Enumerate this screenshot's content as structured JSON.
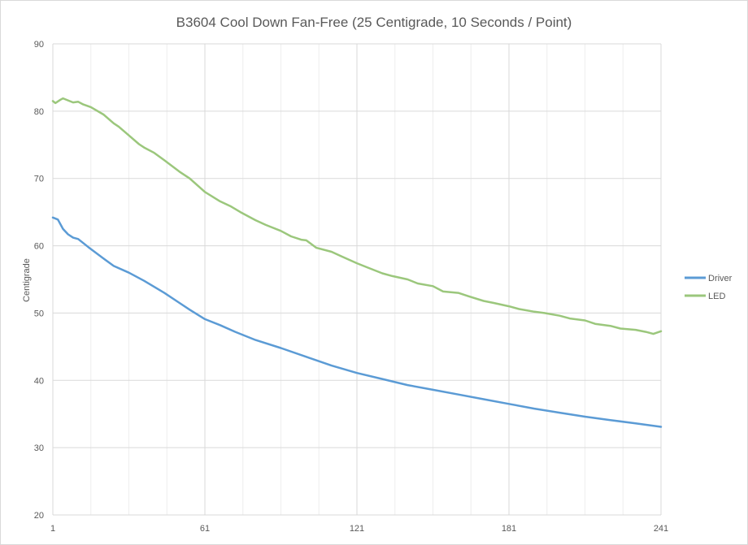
{
  "chart_data": {
    "type": "line",
    "title": "B3604 Cool Down Fan-Free (25 Centigrade, 10 Seconds / Point)",
    "ylabel": "Centigrade",
    "xlabel": "",
    "xlim": [
      1,
      241
    ],
    "ylim": [
      20,
      90
    ],
    "x_ticks": [
      1,
      61,
      121,
      181,
      241
    ],
    "y_ticks": [
      20,
      30,
      40,
      50,
      60,
      70,
      80,
      90
    ],
    "grid": true,
    "legend_position": "right",
    "series": [
      {
        "name": "Driver",
        "color": "#5b9bd5",
        "points": [
          [
            1,
            64.2
          ],
          [
            3,
            63.9
          ],
          [
            5,
            62.5
          ],
          [
            7,
            61.7
          ],
          [
            9,
            61.2
          ],
          [
            11,
            61.0
          ],
          [
            15,
            59.8
          ],
          [
            21,
            58.1
          ],
          [
            25,
            57.0
          ],
          [
            31,
            56.0
          ],
          [
            37,
            54.8
          ],
          [
            45,
            53.0
          ],
          [
            51,
            51.5
          ],
          [
            55,
            50.5
          ],
          [
            61,
            49.1
          ],
          [
            67,
            48.2
          ],
          [
            73,
            47.2
          ],
          [
            81,
            46.0
          ],
          [
            91,
            44.8
          ],
          [
            101,
            43.5
          ],
          [
            111,
            42.2
          ],
          [
            121,
            41.1
          ],
          [
            131,
            40.2
          ],
          [
            141,
            39.3
          ],
          [
            151,
            38.6
          ],
          [
            161,
            37.9
          ],
          [
            171,
            37.2
          ],
          [
            181,
            36.5
          ],
          [
            191,
            35.8
          ],
          [
            201,
            35.2
          ],
          [
            211,
            34.6
          ],
          [
            221,
            34.1
          ],
          [
            231,
            33.6
          ],
          [
            241,
            33.1
          ]
        ]
      },
      {
        "name": "LED",
        "color": "#9bc77c",
        "points": [
          [
            1,
            81.5
          ],
          [
            2,
            81.2
          ],
          [
            4,
            81.7
          ],
          [
            5,
            81.9
          ],
          [
            7,
            81.6
          ],
          [
            9,
            81.3
          ],
          [
            11,
            81.4
          ],
          [
            13,
            81.0
          ],
          [
            16,
            80.6
          ],
          [
            21,
            79.5
          ],
          [
            25,
            78.2
          ],
          [
            27,
            77.7
          ],
          [
            31,
            76.4
          ],
          [
            35,
            75.1
          ],
          [
            37,
            74.6
          ],
          [
            41,
            73.8
          ],
          [
            45,
            72.7
          ],
          [
            51,
            71.0
          ],
          [
            55,
            70.0
          ],
          [
            61,
            68.0
          ],
          [
            67,
            66.6
          ],
          [
            71,
            65.9
          ],
          [
            75,
            65.0
          ],
          [
            81,
            63.8
          ],
          [
            85,
            63.1
          ],
          [
            91,
            62.2
          ],
          [
            95,
            61.4
          ],
          [
            99,
            60.9
          ],
          [
            101,
            60.8
          ],
          [
            105,
            59.7
          ],
          [
            111,
            59.1
          ],
          [
            115,
            58.4
          ],
          [
            121,
            57.4
          ],
          [
            125,
            56.8
          ],
          [
            131,
            55.9
          ],
          [
            135,
            55.5
          ],
          [
            141,
            55.0
          ],
          [
            145,
            54.4
          ],
          [
            151,
            54.0
          ],
          [
            155,
            53.2
          ],
          [
            161,
            53.0
          ],
          [
            165,
            52.5
          ],
          [
            171,
            51.8
          ],
          [
            175,
            51.5
          ],
          [
            181,
            51.0
          ],
          [
            185,
            50.6
          ],
          [
            191,
            50.2
          ],
          [
            195,
            50.0
          ],
          [
            201,
            49.6
          ],
          [
            205,
            49.2
          ],
          [
            211,
            48.9
          ],
          [
            215,
            48.4
          ],
          [
            221,
            48.1
          ],
          [
            225,
            47.7
          ],
          [
            231,
            47.5
          ],
          [
            235,
            47.2
          ],
          [
            238,
            46.9
          ],
          [
            241,
            47.3
          ]
        ]
      }
    ]
  }
}
